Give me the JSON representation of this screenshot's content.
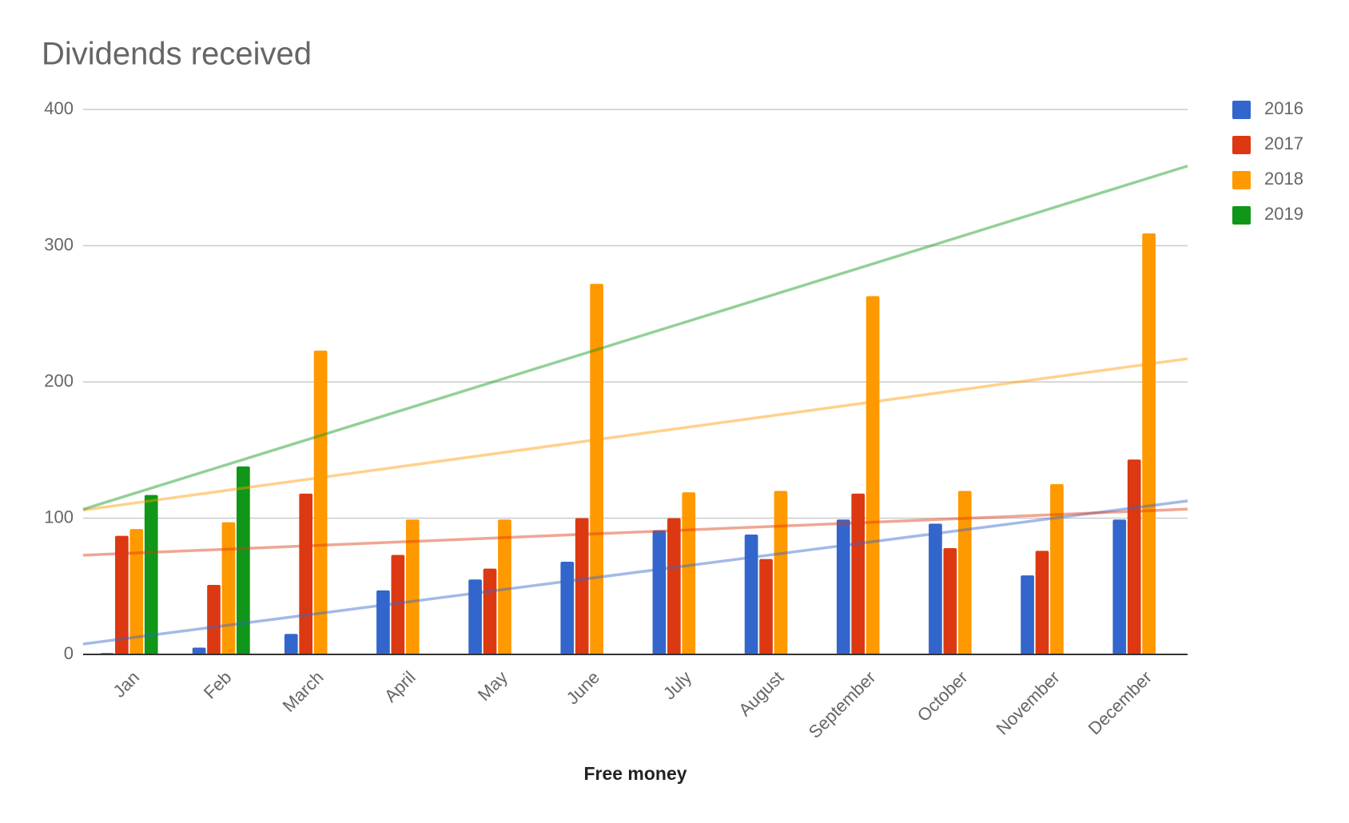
{
  "chart_data": {
    "type": "bar",
    "title": "Dividends received",
    "x_label": "Free money",
    "categories": [
      "Jan",
      "Feb",
      "March",
      "April",
      "May",
      "June",
      "July",
      "August",
      "September",
      "October",
      "November",
      "December"
    ],
    "series": [
      {
        "name": "2016",
        "color": "#3366cc",
        "values": [
          1,
          5,
          15,
          47,
          55,
          68,
          91,
          88,
          99,
          96,
          58,
          99
        ]
      },
      {
        "name": "2017",
        "color": "#dc3912",
        "values": [
          87,
          51,
          118,
          73,
          63,
          100,
          100,
          70,
          118,
          78,
          76,
          143
        ]
      },
      {
        "name": "2018",
        "color": "#ff9900",
        "values": [
          92,
          97,
          223,
          99,
          99,
          272,
          119,
          120,
          263,
          120,
          125,
          309
        ]
      },
      {
        "name": "2019",
        "color": "#109618",
        "values": [
          117,
          138,
          null,
          null,
          null,
          null,
          null,
          null,
          null,
          null,
          null,
          null
        ]
      }
    ],
    "ylim": [
      0,
      400
    ],
    "yticks": [
      0,
      100,
      200,
      300,
      400
    ],
    "grid": true,
    "trendline": true,
    "legend": "right"
  }
}
